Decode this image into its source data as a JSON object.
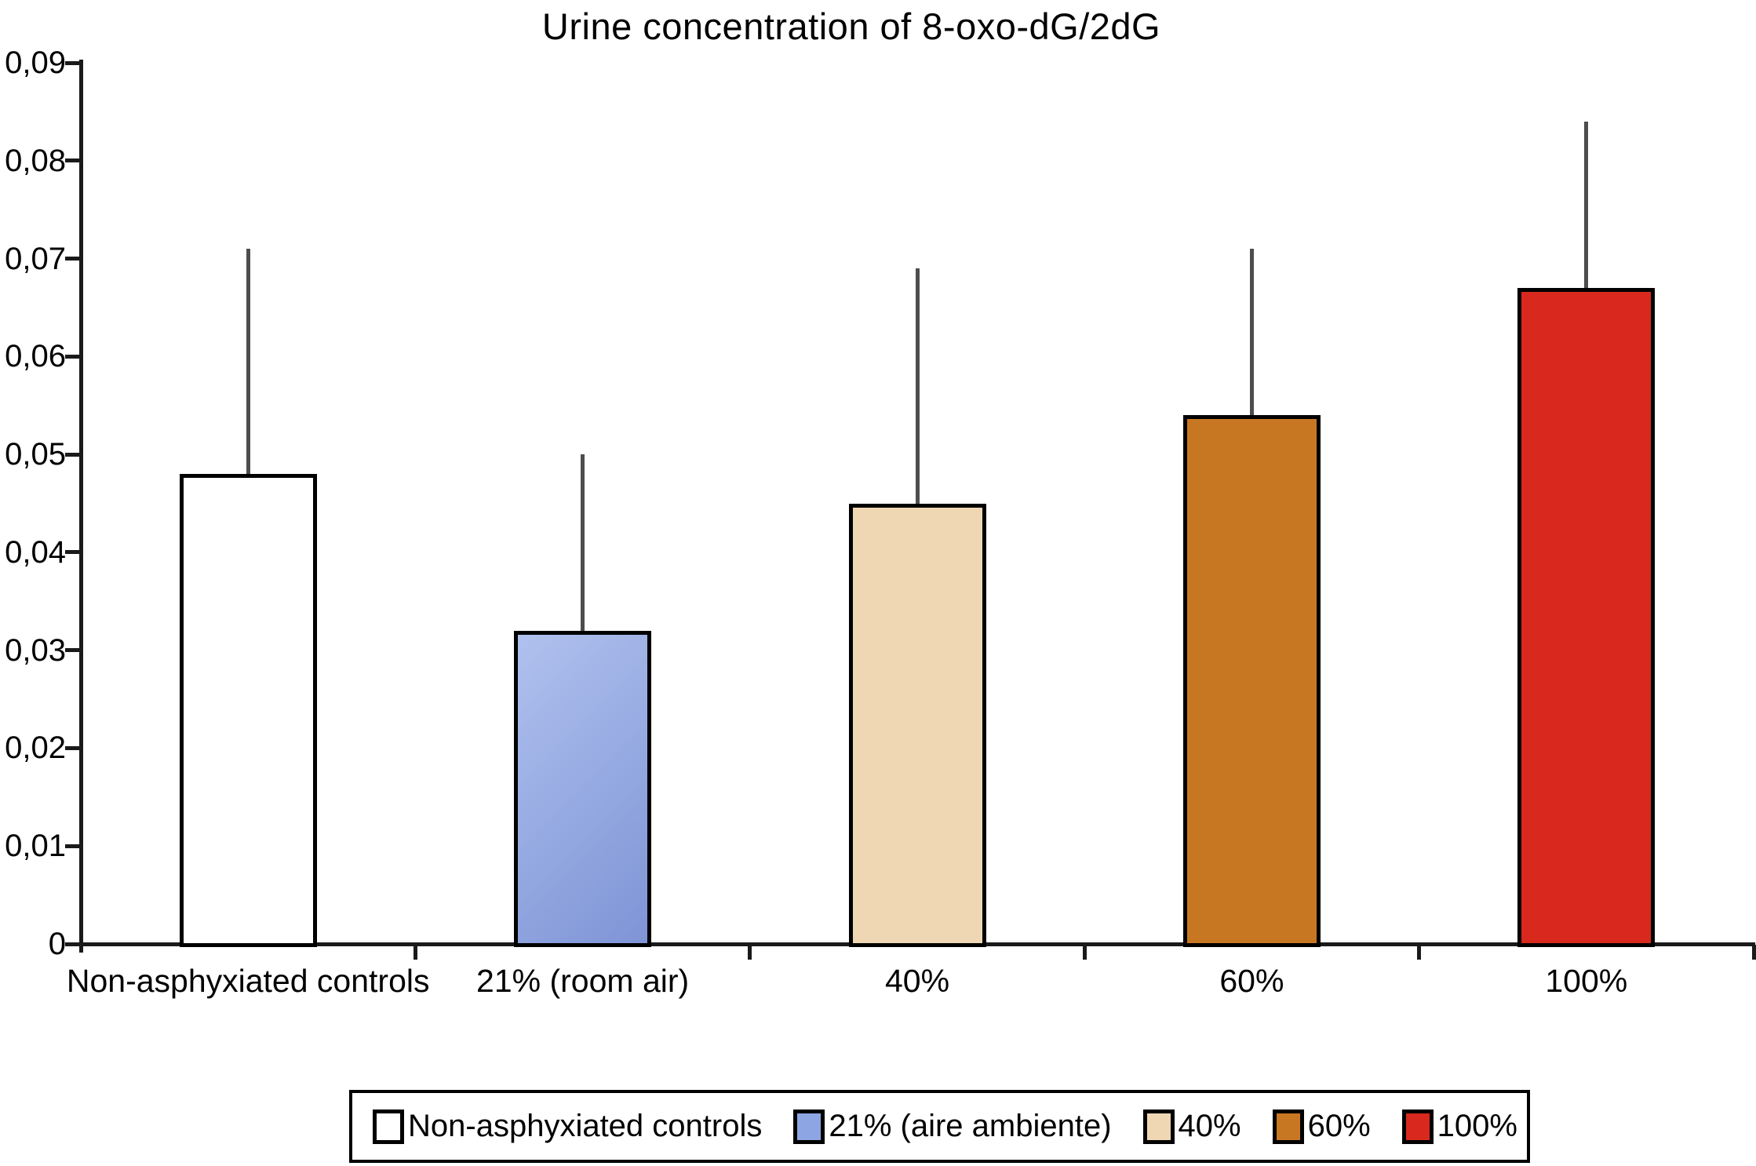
{
  "chart_data": {
    "type": "bar",
    "title": "Urine concentration of 8-oxo-dG/2dG",
    "categories": [
      "Non-asphyxiated controls",
      "21% (room air)",
      "40%",
      "60%",
      "100%"
    ],
    "values": [
      0.048,
      0.032,
      0.045,
      0.054,
      0.067
    ],
    "error_whisker_top": [
      0.071,
      0.05,
      0.069,
      0.071,
      0.084
    ],
    "bar_colors": [
      "#ffffff",
      "#8da5e2",
      "#efd7b4",
      "#c77722",
      "#d9291e"
    ],
    "bar_gradients": [
      null,
      [
        "#b0c1ee",
        "#7e94d6"
      ],
      null,
      null,
      null
    ],
    "bar_border_color": "#000000",
    "whisker_color": "#4d4d4d",
    "xlabel": "",
    "ylabel": "",
    "ylim": [
      0,
      0.09
    ],
    "ytick_step": 0.01,
    "ytick_labels": [
      "0",
      "0,01",
      "0,02",
      "0,03",
      "0,04",
      "0,05",
      "0,06",
      "0,07",
      "0,08",
      "0,09"
    ],
    "decimal_separator": ",",
    "grid": false,
    "legend_position": "bottom",
    "legend": [
      {
        "label": "Non-asphyxiated controls",
        "color": "#ffffff"
      },
      {
        "label": "21% (aire ambiente)",
        "color": "#8da5e2"
      },
      {
        "label": "40%",
        "color": "#efd7b4"
      },
      {
        "label": "60%",
        "color": "#c77722"
      },
      {
        "label": "100%",
        "color": "#d9291e"
      }
    ]
  }
}
